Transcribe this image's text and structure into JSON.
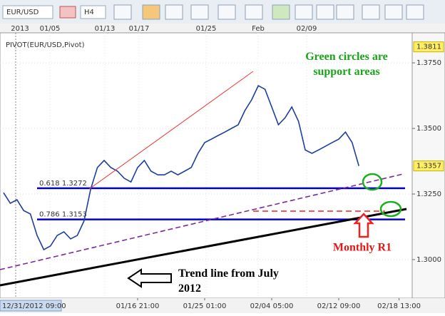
{
  "toolbar": {
    "symbol": "EUR/USD",
    "timeframe": "H4"
  },
  "chart_data": {
    "type": "line",
    "indicator_label": "PIVOT(EUR/USD,Pivot)",
    "top_axis_labels": [
      "2013",
      "01/05",
      "01/13",
      "01/17",
      "01/25",
      "Feb",
      "02/09"
    ],
    "categories": [
      "12/31/2012 09:00",
      null,
      null,
      null,
      null,
      null,
      null,
      null,
      null,
      null,
      null,
      null,
      null,
      null,
      null,
      null,
      null,
      null,
      null,
      null,
      "01/16 21:00",
      null,
      null,
      null,
      null,
      null,
      null,
      null,
      null,
      null,
      "01/25 01:00",
      null,
      null,
      null,
      null,
      null,
      null,
      null,
      null,
      null,
      "02/04 05:00",
      null,
      null,
      null,
      null,
      null,
      null,
      null,
      null,
      null,
      "02/12 09:00",
      null,
      null,
      null,
      null,
      null,
      null,
      null,
      null,
      "02/18 13:00"
    ],
    "series": [
      {
        "name": "EUR/USD",
        "color": "#1c3f9e",
        "values": [
          1.3255,
          1.3215,
          1.3228,
          1.3187,
          1.3174,
          1.3092,
          1.3038,
          1.3052,
          1.3092,
          1.3106,
          1.3079,
          1.3092,
          1.3147,
          1.3269,
          1.3351,
          1.3378,
          1.3351,
          1.3337,
          1.331,
          1.3296,
          1.3351,
          1.3378,
          1.3337,
          1.3323,
          1.3323,
          1.3337,
          1.3323,
          1.3337,
          1.3351,
          1.3405,
          1.3446,
          1.3459,
          1.3473,
          1.3486,
          1.35,
          1.3514,
          1.3568,
          1.3609,
          1.3663,
          1.3649,
          1.3582,
          1.3514,
          1.3541,
          1.3582,
          1.3527,
          1.3418,
          1.3405,
          1.3418,
          1.3432,
          1.3446,
          1.3459,
          1.3486,
          1.3446,
          1.3357,
          null,
          null,
          null,
          null,
          null,
          null
        ]
      }
    ],
    "ylim": [
      1.2853,
      1.384
    ],
    "yticks": [
      {
        "value": 1.375,
        "label": "1.3750"
      },
      {
        "value": 1.35,
        "label": "1.3500"
      },
      {
        "value": 1.325,
        "label": "1.3250"
      },
      {
        "value": 1.3,
        "label": "1.3000"
      }
    ],
    "price_markers": [
      1.3811,
      1.3357
    ],
    "fib_levels": [
      {
        "label": "0.618",
        "value": 1.3272
      },
      {
        "label": "0.786",
        "value": 1.3153
      }
    ],
    "fib_color": "#0000dd",
    "grid": true,
    "annotations": [
      "Green circles are support areas",
      "Monthly R1",
      "Trend line from July 2012"
    ]
  }
}
